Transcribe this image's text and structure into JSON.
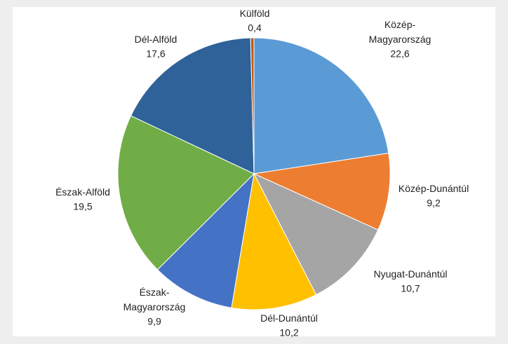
{
  "chart_data": {
    "type": "pie",
    "categories": [
      "Közép-Magyarország",
      "Közép-Dunántúl",
      "Nyugat-Dunántúl",
      "Dél-Dunántúl",
      "Észak-Magyarország",
      "Észak-Alföld",
      "Dél-Alföld",
      "Külföld"
    ],
    "values": [
      22.6,
      9.2,
      10.7,
      10.2,
      9.9,
      19.5,
      17.6,
      0.4
    ],
    "value_labels": [
      "22,6",
      "9,2",
      "10,7",
      "10,2",
      "9,9",
      "19,5",
      "17,6",
      "0,4"
    ],
    "colors": [
      "#5b9bd5",
      "#ed7d31",
      "#a5a5a5",
      "#ffc000",
      "#4472c4",
      "#70ad47",
      "#2e6299",
      "#c55a11"
    ]
  }
}
